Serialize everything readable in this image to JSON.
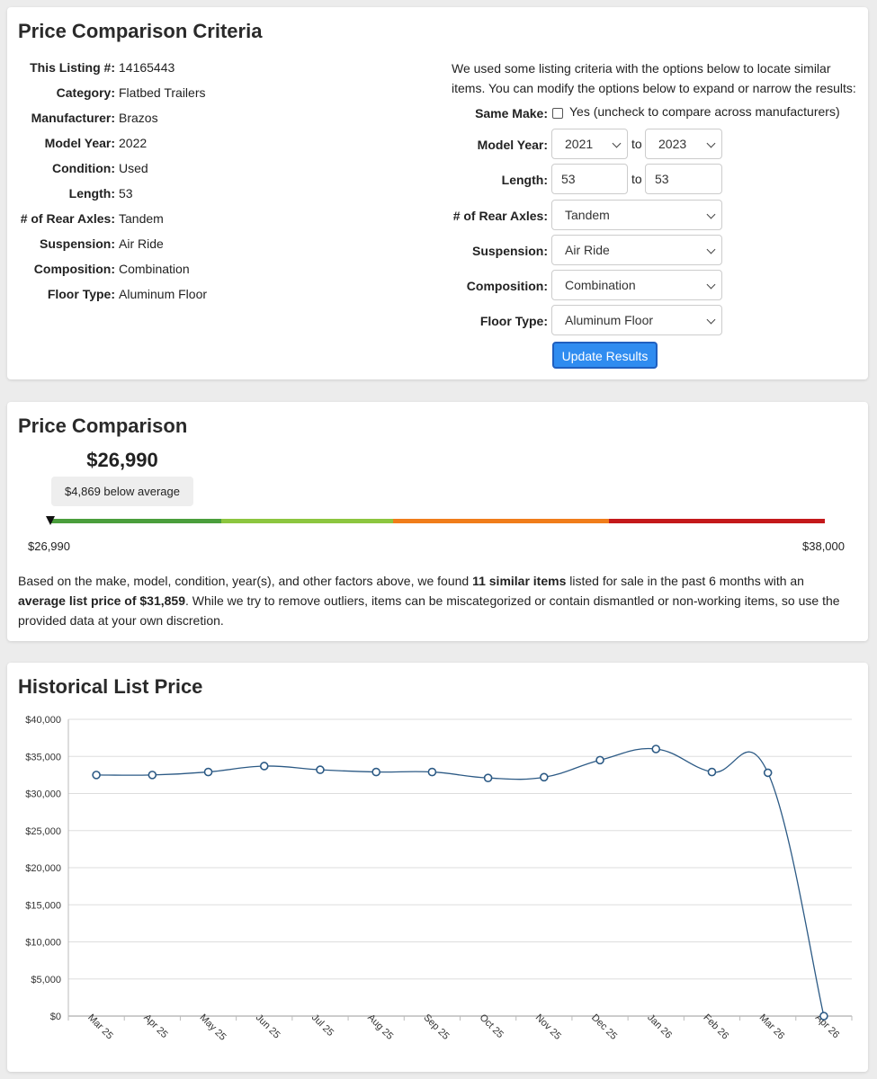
{
  "criteria": {
    "title": "Price Comparison Criteria",
    "specs": [
      {
        "label": "This Listing #:",
        "value": "14165443"
      },
      {
        "label": "Category:",
        "value": "Flatbed Trailers"
      },
      {
        "label": "Manufacturer:",
        "value": "Brazos"
      },
      {
        "label": "Model Year:",
        "value": "2022"
      },
      {
        "label": "Condition:",
        "value": "Used"
      },
      {
        "label": "Length:",
        "value": "53"
      },
      {
        "label": "# of Rear Axles:",
        "value": "Tandem"
      },
      {
        "label": "Suspension:",
        "value": "Air Ride"
      },
      {
        "label": "Composition:",
        "value": "Combination"
      },
      {
        "label": "Floor Type:",
        "value": "Aluminum Floor"
      }
    ],
    "intro": "We used some listing criteria with the options below to locate similar items. You can modify the options below to expand or narrow the results:",
    "same_make": {
      "label": "Same Make:",
      "text": "Yes (uncheck to compare across manufacturers)",
      "checked": false
    },
    "model_year": {
      "label": "Model Year:",
      "from": "2021",
      "to_text": "to",
      "to": "2023"
    },
    "length": {
      "label": "Length:",
      "from": "53",
      "to_text": "to",
      "to": "53"
    },
    "rear_axles": {
      "label": "# of Rear Axles:",
      "value": "Tandem"
    },
    "suspension": {
      "label": "Suspension:",
      "value": "Air Ride"
    },
    "composition": {
      "label": "Composition:",
      "value": "Combination"
    },
    "floor_type": {
      "label": "Floor Type:",
      "value": "Aluminum Floor"
    },
    "update_label": "Update Results"
  },
  "comparison": {
    "title": "Price Comparison",
    "price": "$26,990",
    "below_text": "$4,869 below average",
    "min_label": "$26,990",
    "max_label": "$38,000",
    "bar_colors": [
      "#4a9e3c",
      "#8cc63f",
      "#f07d1a",
      "#c4191b"
    ],
    "summary_1": "Based on the make, model, condition, year(s), and other factors above, we found ",
    "summary_bold_1": "11 similar items",
    "summary_2": " listed for sale in the past 6 months with an ",
    "summary_bold_2": "average list price of $31,859",
    "summary_3": ". While we try to remove outliers, items can be miscategorized or contain dismantled or non-working items, so use the provided data at your own discretion."
  },
  "history": {
    "title": "Historical List Price",
    "chart_data": {
      "type": "line",
      "categories": [
        "Mar 25",
        "Apr 25",
        "May 25",
        "Jun 25",
        "Jul 25",
        "Aug 25",
        "Sep 25",
        "Oct 25",
        "Nov 25",
        "Dec 25",
        "Jan 26",
        "Feb 26",
        "Mar 26",
        "Apr 26"
      ],
      "values": [
        32500,
        32500,
        32900,
        33700,
        33200,
        32900,
        32900,
        32100,
        32200,
        34500,
        36000,
        32900,
        32800,
        0
      ],
      "y_ticks": [
        "$0",
        "$5,000",
        "$10,000",
        "$15,000",
        "$20,000",
        "$25,000",
        "$30,000",
        "$35,000",
        "$40,000"
      ],
      "ylim": [
        0,
        40000
      ],
      "grid": true,
      "line_color": "#2c5a85",
      "title": "",
      "xlabel": "",
      "ylabel": ""
    }
  }
}
